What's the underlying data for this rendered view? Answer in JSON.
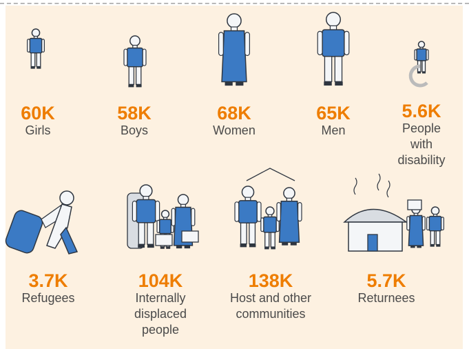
{
  "items": [
    {
      "value": "60K",
      "label": "Girls"
    },
    {
      "value": "58K",
      "label": "Boys"
    },
    {
      "value": "68K",
      "label": "Women"
    },
    {
      "value": "65K",
      "label": "Men"
    },
    {
      "value": "5.6K",
      "label": "People with disability"
    },
    {
      "value": "3.7K",
      "label": "Refugees"
    },
    {
      "value": "104K",
      "label": "Internally displaced people"
    },
    {
      "value": "138K",
      "label": "Host and other communities"
    },
    {
      "value": "5.7K",
      "label": "Returnees"
    }
  ]
}
